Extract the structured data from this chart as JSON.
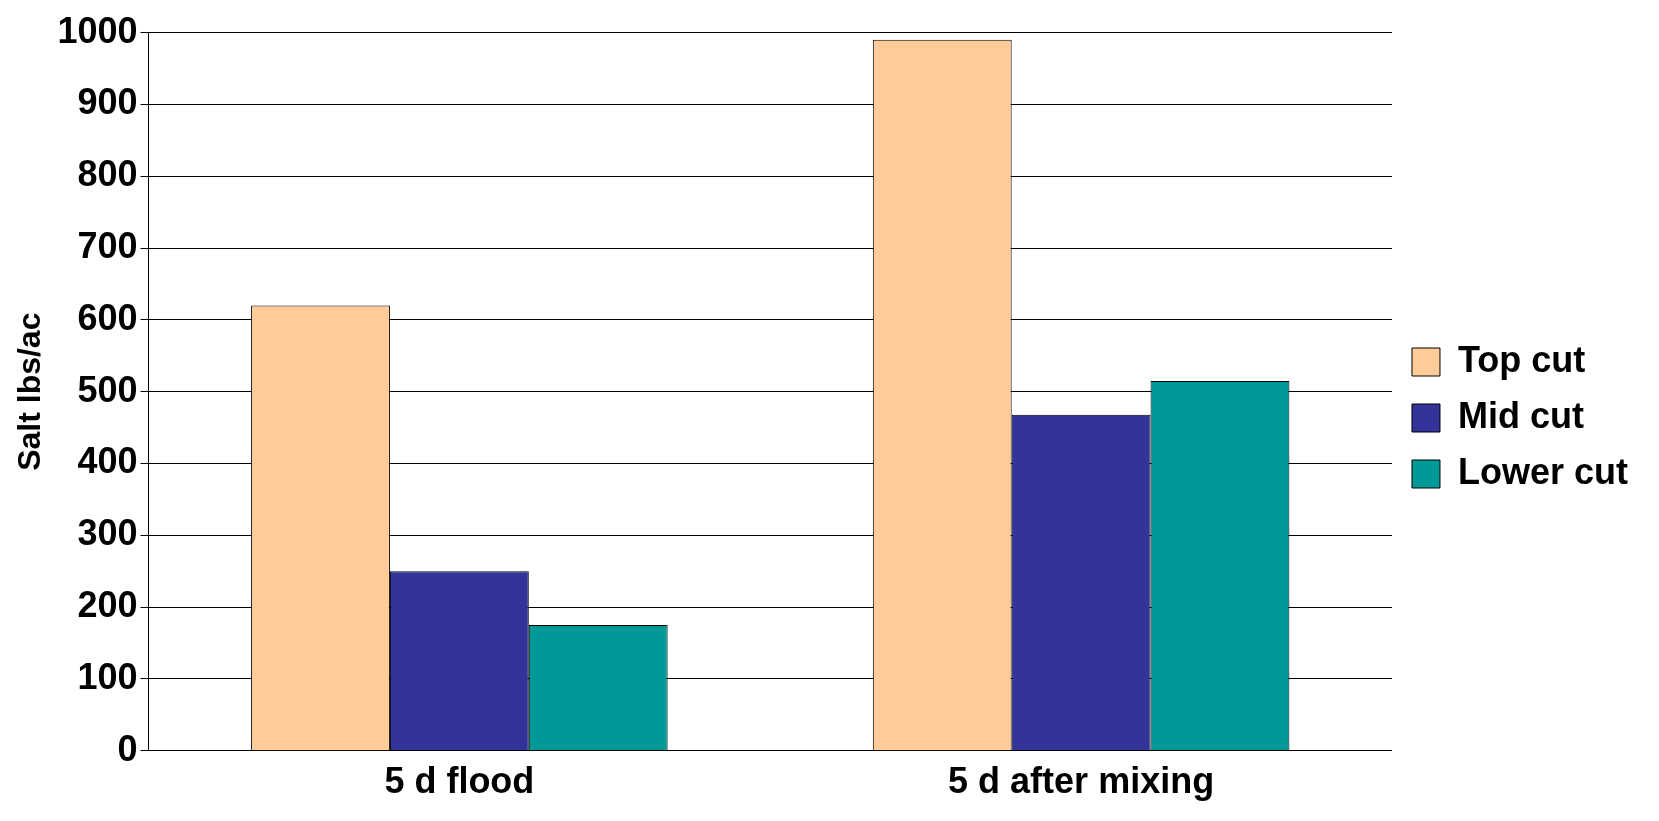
{
  "chart_data": {
    "type": "bar",
    "ylabel": "Salt lbs/ac",
    "categories": [
      "5 d flood",
      "5 d after mixing"
    ],
    "series": [
      {
        "name": "Top cut",
        "color": "#ffcc99",
        "values": [
          620,
          990
        ]
      },
      {
        "name": "Mid cut",
        "color": "#333399",
        "values": [
          250,
          468
        ]
      },
      {
        "name": "Lower cut",
        "color": "#009999",
        "values": [
          175,
          515
        ]
      }
    ],
    "ylim": [
      0,
      1000
    ],
    "yticks": [
      0,
      100,
      200,
      300,
      400,
      500,
      600,
      700,
      800,
      900,
      1000
    ],
    "grid": "y",
    "legend": "right"
  }
}
